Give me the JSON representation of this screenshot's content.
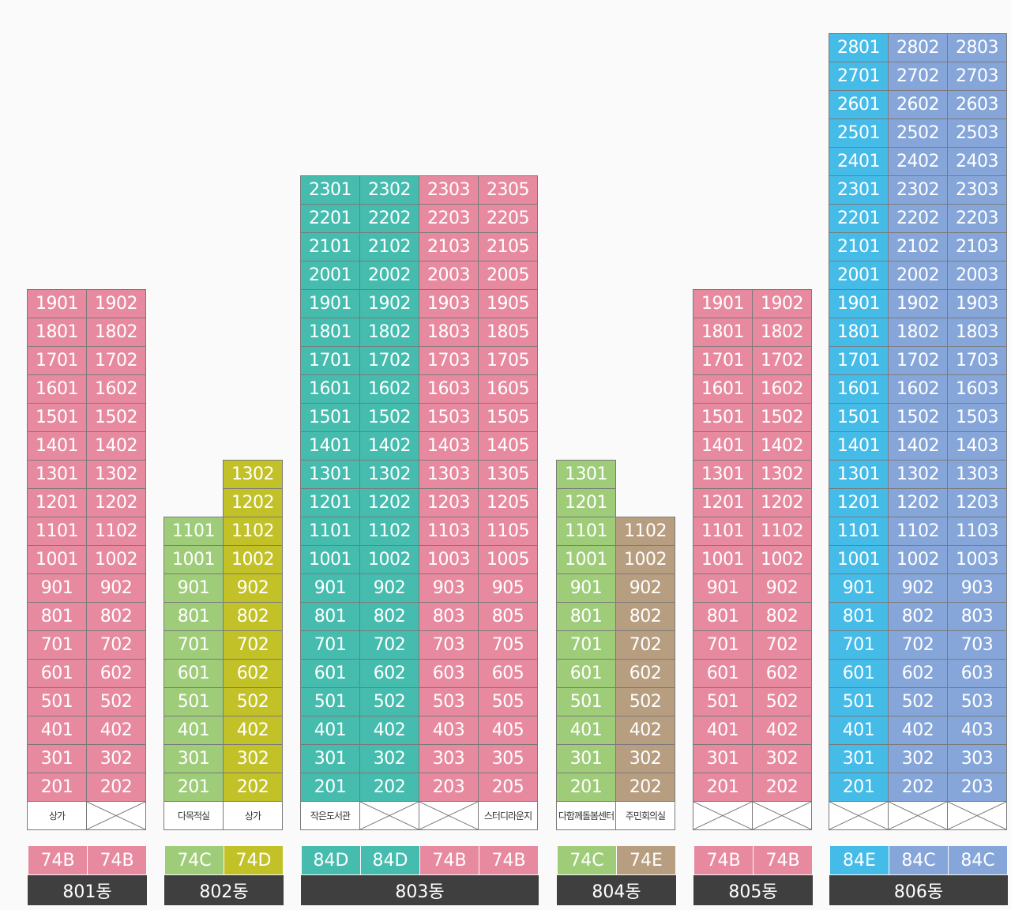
{
  "palette": {
    "pink": "#e78aa0",
    "teal": "#45bcae",
    "lime": "#9fcc79",
    "olive": "#c2c128",
    "tan": "#b89e80",
    "sky": "#45bbe8",
    "blue": "#86a6d9",
    "dark": "#3f3f3f"
  },
  "buildings": [
    {
      "name": "801동",
      "floors_top_down": [
        19,
        18,
        17,
        16,
        15,
        14,
        13,
        12,
        11,
        10,
        9,
        8,
        7,
        6,
        5,
        4,
        3,
        2
      ],
      "columns": [
        {
          "line": "01",
          "color": "pink",
          "max_floor": 19,
          "ground": "상가",
          "type": "74B"
        },
        {
          "line": "02",
          "color": "pink",
          "max_floor": 19,
          "ground": "",
          "type": "74B"
        }
      ]
    },
    {
      "name": "802동",
      "floors_top_down": [
        13,
        12,
        11,
        10,
        9,
        8,
        7,
        6,
        5,
        4,
        3,
        2
      ],
      "columns": [
        {
          "line": "01",
          "color": "lime",
          "max_floor": 11,
          "ground": "다목적실",
          "type": "74C"
        },
        {
          "line": "02",
          "color": "olive",
          "max_floor": 13,
          "ground": "상가",
          "type": "74D"
        }
      ]
    },
    {
      "name": "803동",
      "floors_top_down": [
        23,
        22,
        21,
        20,
        19,
        18,
        17,
        16,
        15,
        14,
        13,
        12,
        11,
        10,
        9,
        8,
        7,
        6,
        5,
        4,
        3,
        2
      ],
      "columns": [
        {
          "line": "01",
          "color": "teal",
          "max_floor": 23,
          "ground": "작은도서관",
          "type": "84D"
        },
        {
          "line": "02",
          "color": "teal",
          "max_floor": 23,
          "ground": "",
          "type": "84D"
        },
        {
          "line": "03",
          "color": "pink",
          "max_floor": 23,
          "ground": "",
          "type": "74B"
        },
        {
          "line": "05",
          "color": "pink",
          "max_floor": 23,
          "ground": "스터디라운지",
          "type": "74B"
        }
      ]
    },
    {
      "name": "804동",
      "floors_top_down": [
        13,
        12,
        11,
        10,
        9,
        8,
        7,
        6,
        5,
        4,
        3,
        2
      ],
      "columns": [
        {
          "line": "01",
          "color": "lime",
          "max_floor": 13,
          "ground": "다함께돌봄센터",
          "type": "74C"
        },
        {
          "line": "02",
          "color": "tan",
          "max_floor": 11,
          "ground": "주민회의실",
          "type": "74E"
        }
      ]
    },
    {
      "name": "805동",
      "floors_top_down": [
        19,
        18,
        17,
        16,
        15,
        14,
        13,
        12,
        11,
        10,
        9,
        8,
        7,
        6,
        5,
        4,
        3,
        2
      ],
      "columns": [
        {
          "line": "01",
          "color": "pink",
          "max_floor": 19,
          "ground": "",
          "type": "74B"
        },
        {
          "line": "02",
          "color": "pink",
          "max_floor": 19,
          "ground": "",
          "type": "74B"
        }
      ]
    },
    {
      "name": "806동",
      "floors_top_down": [
        28,
        27,
        26,
        25,
        24,
        23,
        22,
        21,
        20,
        19,
        18,
        17,
        16,
        15,
        14,
        13,
        12,
        11,
        10,
        9,
        8,
        7,
        6,
        5,
        4,
        3,
        2
      ],
      "columns": [
        {
          "line": "01",
          "color": "sky",
          "max_floor": 28,
          "ground": "",
          "type": "84E"
        },
        {
          "line": "02",
          "color": "blue",
          "max_floor": 28,
          "ground": "",
          "type": "84C"
        },
        {
          "line": "03",
          "color": "blue",
          "max_floor": 28,
          "ground": "",
          "type": "84C"
        }
      ]
    }
  ]
}
